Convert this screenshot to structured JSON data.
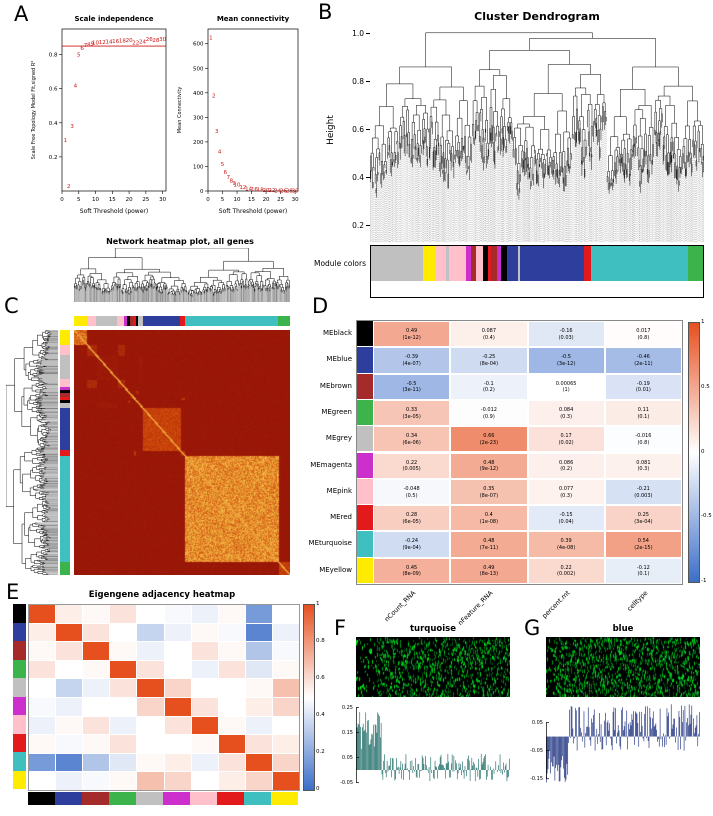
{
  "labels": {
    "A": "A",
    "B": "B",
    "C": "C",
    "D": "D",
    "E": "E",
    "F": "F",
    "G": "G"
  },
  "module_palette": {
    "black": "#000000",
    "blue": "#2d3e9c",
    "brown": "#a52a2a",
    "green": "#3cb44b",
    "grey": "#c0c0c0",
    "magenta": "#cc2fcb",
    "pink": "#ffc0cb",
    "red": "#e31a1c",
    "turquoise": "#3fbfbf",
    "yellow": "#ffeb00",
    "white": "#ffffff"
  },
  "chart_data": [
    {
      "id": "scale_independence",
      "type": "scatter",
      "title": "Scale independence",
      "xlabel": "Soft Threshold (power)",
      "ylabel": "Scale Free Topology Model Fit,signed R²",
      "x": [
        1,
        2,
        3,
        4,
        5,
        6,
        7,
        8,
        9,
        10,
        12,
        14,
        16,
        18,
        20,
        22,
        24,
        26,
        28,
        30
      ],
      "y": [
        0.3,
        0.03,
        0.38,
        0.62,
        0.8,
        0.84,
        0.855,
        0.86,
        0.865,
        0.87,
        0.875,
        0.878,
        0.88,
        0.882,
        0.885,
        0.872,
        0.876,
        0.89,
        0.886,
        0.89
      ],
      "hline": 0.85,
      "xlim": [
        0,
        31
      ],
      "ylim": [
        0,
        0.95
      ],
      "xticks": [
        0,
        5,
        10,
        15,
        20,
        25,
        30
      ],
      "yticks": [
        0.2,
        0.4,
        0.6,
        0.8
      ],
      "point_color": "#cc1414",
      "hline_color": "#cc1414"
    },
    {
      "id": "mean_connectivity",
      "type": "scatter",
      "title": "Mean connectivity",
      "xlabel": "Soft Threshold (power)",
      "ylabel": "Mean Connectivity",
      "x": [
        1,
        2,
        3,
        4,
        5,
        6,
        7,
        8,
        9,
        10,
        12,
        14,
        16,
        18,
        20,
        22,
        24,
        26,
        28,
        30
      ],
      "y": [
        625,
        390,
        245,
        160,
        110,
        78,
        57,
        43,
        33,
        26,
        17,
        11,
        8,
        6,
        4.5,
        3.5,
        3,
        2.5,
        2,
        1.8
      ],
      "xlim": [
        0,
        31
      ],
      "ylim": [
        0,
        660
      ],
      "xticks": [
        0,
        5,
        10,
        15,
        20,
        25,
        30
      ],
      "yticks": [
        0,
        100,
        200,
        300,
        400,
        500,
        600
      ],
      "point_color": "#cc1414"
    },
    {
      "id": "cluster_dendrogram",
      "type": "dendrogram",
      "title": "Cluster Dendrogram",
      "ylabel": "Height",
      "yticks": [
        0.2,
        0.4,
        0.6,
        0.8,
        1.0
      ],
      "ylim": [
        0.13,
        1.02
      ],
      "colors_label": "Module colors",
      "seed": 7,
      "color_segments": [
        [
          "grey",
          14
        ],
        [
          "yellow",
          3.5
        ],
        [
          "pink",
          2.5
        ],
        [
          "grey",
          0.8
        ],
        [
          "pink",
          4.5
        ],
        [
          "magenta",
          1.5
        ],
        [
          "brown",
          1.2
        ],
        [
          "pink",
          2
        ],
        [
          "black",
          1.2
        ],
        [
          "red",
          1
        ],
        [
          "brown",
          1.5
        ],
        [
          "magenta",
          1.2
        ],
        [
          "black",
          1.5
        ],
        [
          "blue",
          3
        ],
        [
          "grey",
          0.5
        ],
        [
          "blue",
          17
        ],
        [
          "red",
          2
        ],
        [
          "turquoise",
          26
        ],
        [
          "green",
          4
        ]
      ]
    },
    {
      "id": "network_heatmap",
      "type": "heatmap",
      "title": "Network heatmap plot, all genes",
      "seed": 13,
      "order_segments": [
        [
          "yellow",
          5.5
        ],
        [
          "pink",
          4
        ],
        [
          "grey",
          9
        ],
        [
          "pink",
          3
        ],
        [
          "magenta",
          1.2
        ],
        [
          "black",
          1.2
        ],
        [
          "brown",
          1.5
        ],
        [
          "red",
          1
        ],
        [
          "black",
          1
        ],
        [
          "grey",
          2
        ],
        [
          "blue",
          16
        ],
        [
          "red",
          2
        ],
        [
          "turquoise",
          40
        ],
        [
          "green",
          5
        ]
      ],
      "module_heat": {
        "yellow": 0.78,
        "blue": 0.55,
        "turquoise": 0.92,
        "green": 0.5,
        "red": 0.4,
        "pink": 0.28,
        "magenta": 0.3,
        "black": 0.3,
        "brown": 0.32,
        "grey": 0.12
      }
    },
    {
      "id": "module_trait",
      "type": "heatmap",
      "rows": [
        "MEblack",
        "MEblue",
        "MEbrown",
        "MEgreen",
        "MEgrey",
        "MEmagenta",
        "MEpink",
        "MEred",
        "MEturquoise",
        "MEyellow"
      ],
      "row_colors": [
        "black",
        "blue",
        "brown",
        "green",
        "grey",
        "magenta",
        "pink",
        "red",
        "turquoise",
        "yellow"
      ],
      "columns": [
        "nCount_RNA",
        "nFeature_RNA",
        "percent.mt",
        "celltype"
      ],
      "values": [
        [
          0.49,
          0.087,
          -0.16,
          0.017
        ],
        [
          -0.39,
          -0.25,
          -0.5,
          -0.46
        ],
        [
          -0.5,
          -0.1,
          0.00065,
          -0.19
        ],
        [
          0.33,
          -0.012,
          0.084,
          0.11
        ],
        [
          0.34,
          0.66,
          0.17,
          -0.016
        ],
        [
          0.22,
          0.48,
          0.086,
          0.081
        ],
        [
          -0.048,
          0.35,
          0.077,
          -0.21
        ],
        [
          0.28,
          0.4,
          -0.15,
          0.25
        ],
        [
          -0.24,
          0.48,
          0.39,
          0.54
        ],
        [
          0.45,
          0.49,
          0.22,
          -0.12
        ]
      ],
      "pvalues": [
        [
          "1e-12",
          "0.4",
          "0.03",
          "0.8"
        ],
        [
          "4e-07",
          "8e-04",
          "3e-12",
          "2e-11"
        ],
        [
          "3e-11",
          "0.2",
          "1",
          "0.01"
        ],
        [
          "3e-05",
          "0.9",
          "0.3",
          "0.1"
        ],
        [
          "6e-06",
          "2e-23",
          "0.02",
          "0.8"
        ],
        [
          "0.005",
          "9e-12",
          "0.2",
          "0.3"
        ],
        [
          "0.5",
          "8e-07",
          "0.3",
          "0.003"
        ],
        [
          "6e-05",
          "1e-08",
          "0.04",
          "3e-04"
        ],
        [
          "9e-04",
          "7e-11",
          "4e-08",
          "2e-15"
        ],
        [
          "8e-09",
          "8e-13",
          "0.002",
          "0.1"
        ]
      ],
      "legend_ticks": [
        1,
        0.5,
        0,
        -0.5,
        -1
      ]
    },
    {
      "id": "eigengene_adjacency",
      "type": "heatmap",
      "title": "Eigengene adjacency heatmap",
      "modules": [
        "black",
        "blue",
        "brown",
        "green",
        "grey",
        "magenta",
        "pink",
        "red",
        "turquoise",
        "yellow"
      ],
      "matrix": [
        [
          1,
          0.55,
          0.52,
          0.58,
          0.5,
          0.48,
          0.45,
          0.52,
          0.15,
          0.5
        ],
        [
          0.55,
          1,
          0.58,
          0.5,
          0.35,
          0.45,
          0.52,
          0.48,
          0.08,
          0.45
        ],
        [
          0.52,
          0.58,
          1,
          0.52,
          0.45,
          0.5,
          0.58,
          0.52,
          0.3,
          0.48
        ],
        [
          0.58,
          0.5,
          0.52,
          1,
          0.58,
          0.5,
          0.45,
          0.58,
          0.42,
          0.52
        ],
        [
          0.5,
          0.35,
          0.45,
          0.58,
          1,
          0.62,
          0.5,
          0.5,
          0.52,
          0.68
        ],
        [
          0.48,
          0.45,
          0.5,
          0.5,
          0.62,
          1,
          0.58,
          0.5,
          0.55,
          0.62
        ],
        [
          0.45,
          0.52,
          0.58,
          0.45,
          0.5,
          0.58,
          1,
          0.52,
          0.45,
          0.5
        ],
        [
          0.52,
          0.48,
          0.52,
          0.58,
          0.5,
          0.5,
          0.52,
          1,
          0.58,
          0.55
        ],
        [
          0.15,
          0.08,
          0.3,
          0.42,
          0.52,
          0.55,
          0.45,
          0.58,
          1,
          0.62
        ],
        [
          0.5,
          0.45,
          0.48,
          0.52,
          0.68,
          0.62,
          0.5,
          0.55,
          0.62,
          1
        ]
      ],
      "legend_ticks": [
        1,
        0.8,
        0.6,
        0.4,
        0.2,
        0
      ]
    },
    {
      "id": "module_turquoise",
      "type": "bar",
      "title": "turquoise",
      "bar_color": "#1d6b66",
      "seed": 11,
      "segments": [
        {
          "count": 30,
          "min": 0.07,
          "max": 0.26
        },
        {
          "count": 150,
          "min": -0.045,
          "max": 0.065
        }
      ],
      "ylim": [
        -0.08,
        0.28
      ],
      "yticks": [
        -0.05,
        0.05,
        0.15,
        0.25
      ],
      "expr_seed": 31,
      "expr_dark_left_frac": 0.13,
      "expr_density": 8
    },
    {
      "id": "module_blue",
      "type": "bar",
      "title": "blue",
      "bar_color": "#1a2f7e",
      "seed": 19,
      "segments": [
        {
          "count": 26,
          "min": -0.17,
          "max": -0.05
        },
        {
          "count": 154,
          "min": -0.05,
          "max": 0.115
        }
      ],
      "ylim": [
        -0.19,
        0.13
      ],
      "yticks": [
        -0.15,
        -0.05,
        0.05
      ],
      "expr_seed": 41,
      "expr_dark_left_frac": 0.05,
      "expr_density": 9
    }
  ]
}
